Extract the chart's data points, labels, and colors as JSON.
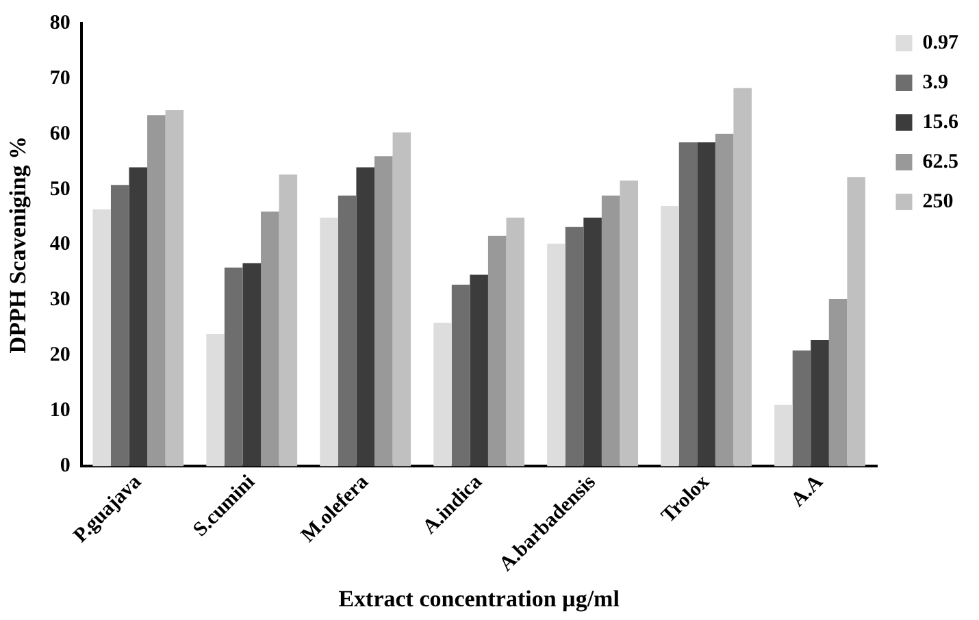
{
  "chart_data": {
    "type": "bar",
    "xlabel": "Extract concentration µg/ml",
    "ylabel": "DPPH Scaveniging %",
    "categories": [
      "P.guajava",
      "S.cumini",
      "M.olefera",
      "A.indica",
      "A.barbadensis",
      "Trolox",
      "A.A"
    ],
    "series": [
      {
        "name": "0.97",
        "color": "#dddddd",
        "values": [
          46.4,
          23.9,
          44.9,
          25.9,
          40.2,
          47,
          11.1
        ]
      },
      {
        "name": "3.9",
        "color": "#6e6e6e",
        "values": [
          50.8,
          35.9,
          48.9,
          32.8,
          43.2,
          58.5,
          20.9
        ]
      },
      {
        "name": "15.6",
        "color": "#3c3c3c",
        "values": [
          54,
          36.7,
          54,
          34.6,
          44.9,
          58.5,
          22.8
        ]
      },
      {
        "name": "62.5",
        "color": "#999999",
        "values": [
          63.4,
          46,
          56,
          41.6,
          48.9,
          60,
          30.2
        ]
      },
      {
        "name": "250",
        "color": "#c0c0c0",
        "values": [
          64.3,
          52.7,
          60.3,
          44.9,
          51.6,
          68.3,
          52.2
        ]
      }
    ],
    "ylim": [
      0,
      80
    ],
    "yticks": [
      0,
      10,
      20,
      30,
      40,
      50,
      60,
      70,
      80
    ],
    "grid": false,
    "legend": "top right"
  }
}
